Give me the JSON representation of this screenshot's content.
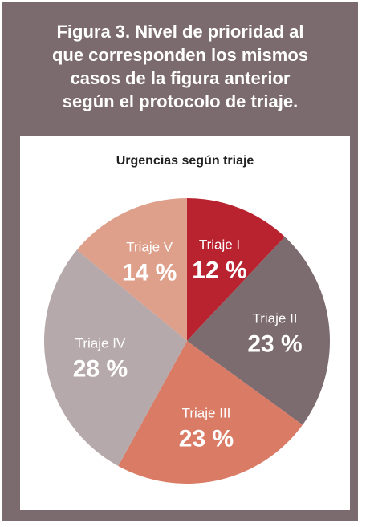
{
  "figure": {
    "caption_lines": [
      "Figura 3. Nivel de prioridad al",
      "que corresponden los mismos",
      "casos de la figura anterior",
      "según el protocolo de triaje."
    ]
  },
  "chart_data": {
    "type": "pie",
    "title": "Urgencias según triaje",
    "categories": [
      "Triaje I",
      "Triaje II",
      "Triaje III",
      "Triaje IV",
      "Triaje V"
    ],
    "values": [
      12,
      23,
      23,
      28,
      14
    ],
    "value_labels": [
      "12 %",
      "23 %",
      "23 %",
      "28 %",
      "14 %"
    ],
    "colors": [
      "#b8232f",
      "#7c6b6f",
      "#d97b65",
      "#b5a9ab",
      "#dfa08b"
    ],
    "start": "12 o'clock, clockwise"
  }
}
